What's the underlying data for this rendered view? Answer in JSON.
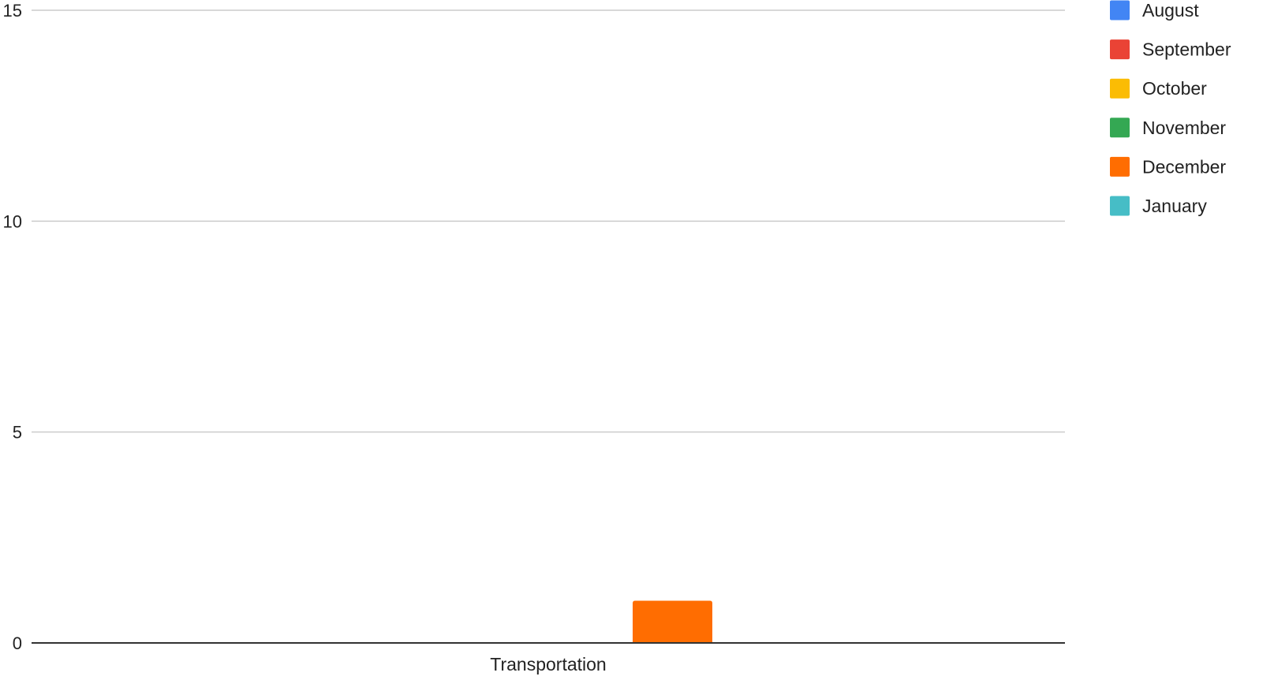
{
  "chart_data": {
    "type": "bar",
    "title": "",
    "xlabel": "",
    "ylabel": "",
    "categories": [
      "Transportation"
    ],
    "ylim": [
      0,
      15
    ],
    "yticks": [
      0,
      5,
      10,
      15
    ],
    "grid": true,
    "legend_position": "right",
    "series": [
      {
        "name": "August",
        "color": "#4285F4",
        "values": [
          0
        ]
      },
      {
        "name": "September",
        "color": "#EA4335",
        "values": [
          0
        ]
      },
      {
        "name": "October",
        "color": "#FBBC04",
        "values": [
          0
        ]
      },
      {
        "name": "November",
        "color": "#34A853",
        "values": [
          0
        ]
      },
      {
        "name": "December",
        "color": "#FF6D01",
        "values": [
          1
        ]
      },
      {
        "name": "January",
        "color": "#46BDC6",
        "values": [
          0
        ]
      }
    ]
  }
}
